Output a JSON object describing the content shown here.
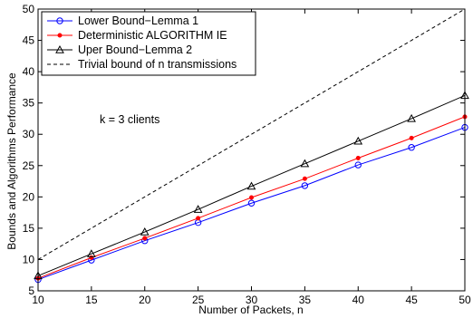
{
  "chart_data": {
    "type": "line",
    "xlabel": "Number of Packets, n",
    "ylabel": "Bounds and Algorithms Performance",
    "xlim": [
      10,
      50
    ],
    "ylim": [
      5,
      50
    ],
    "xticks": [
      10,
      15,
      20,
      25,
      30,
      35,
      40,
      45,
      50
    ],
    "yticks": [
      5,
      10,
      15,
      20,
      25,
      30,
      35,
      40,
      45,
      50
    ],
    "grid": false,
    "legend_position": "top-left",
    "annotation": "k = 3 clients",
    "x": [
      10,
      15,
      20,
      25,
      30,
      35,
      40,
      45,
      50
    ],
    "series": [
      {
        "name": "Lower Bound−Lemma 1",
        "color": "#0000ff",
        "marker": "circle",
        "style": "solid",
        "values": [
          6.8,
          9.9,
          13.0,
          15.9,
          19.0,
          21.8,
          25.1,
          27.9,
          31.1
        ]
      },
      {
        "name": "Deterministic ALGORITHM IE",
        "color": "#ff0000",
        "marker": "dot",
        "style": "solid",
        "values": [
          7.0,
          10.3,
          13.4,
          16.6,
          19.9,
          22.9,
          26.2,
          29.4,
          32.8
        ]
      },
      {
        "name": "Uper Bound−Lemma 2",
        "color": "#000000",
        "marker": "triangle",
        "style": "solid",
        "values": [
          7.4,
          10.9,
          14.4,
          18.0,
          21.7,
          25.3,
          28.9,
          32.5,
          36.2
        ]
      },
      {
        "name": "Trivial bound of n transmissions",
        "color": "#000000",
        "marker": "none",
        "style": "dashed",
        "values": [
          10,
          15,
          20,
          25,
          30,
          35,
          40,
          45,
          50
        ]
      }
    ]
  }
}
